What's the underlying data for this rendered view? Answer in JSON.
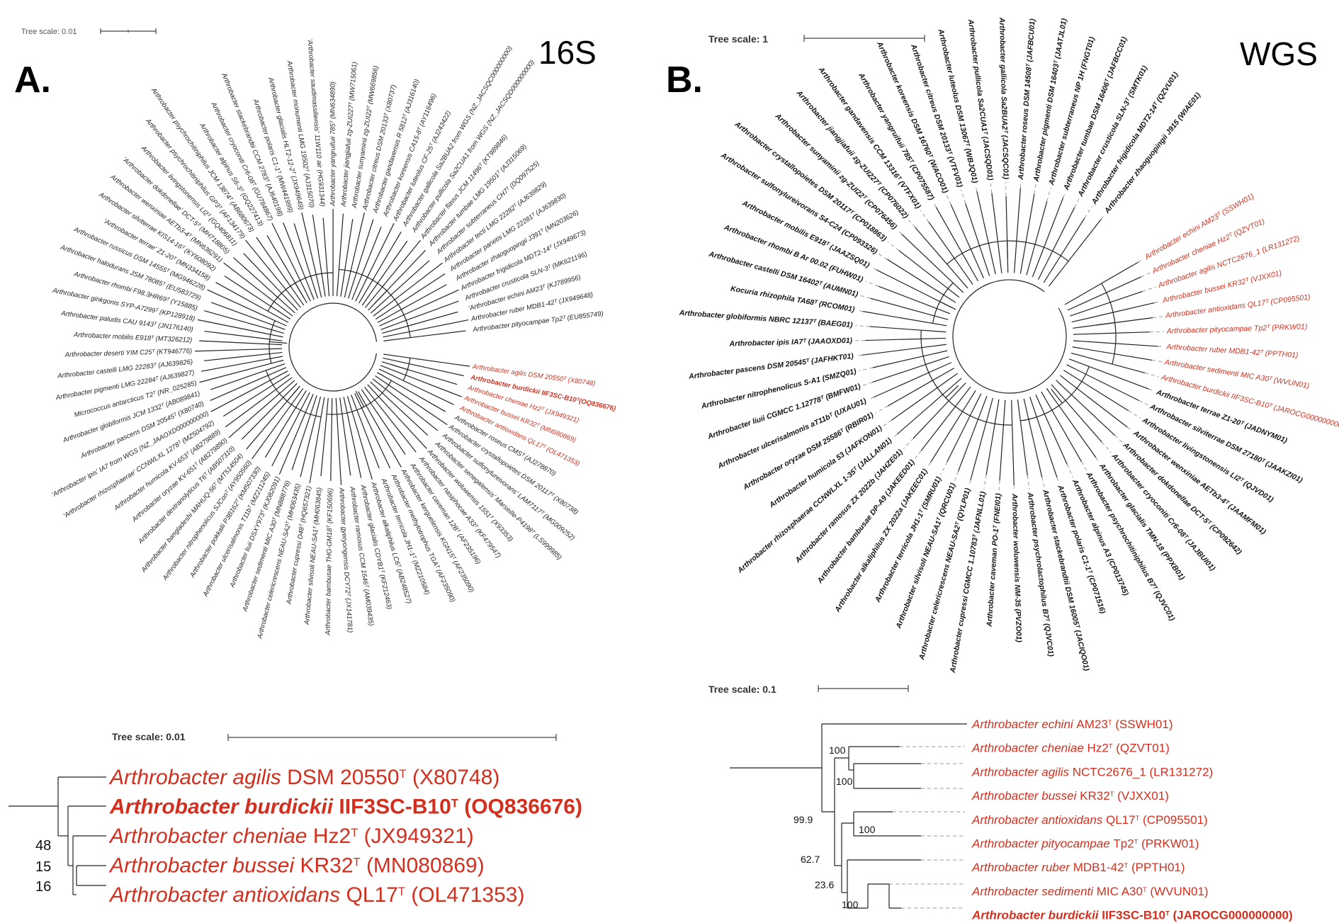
{
  "panel_a": {
    "letter": "A.",
    "method": "16S",
    "tree_scale": "Tree scale: 0.01",
    "leaves": [
      {
        "text": "Arthrobacter agilis DSM 20550ᵀ (X80748)",
        "red": true
      },
      {
        "text": "Arthrobacter burdickii IIF3SC-B10ᵀ(OQ836676)",
        "red": true,
        "bold": true
      },
      {
        "text": "Arthrobacter cheniae Hz2ᵀ (JX949321)",
        "red": true
      },
      {
        "text": "Arthrobacter bussei KR32ᵀ (MN080869)",
        "red": true
      },
      {
        "text": "Arthrobacter antioxidans QL17ᵀ (OL471353)",
        "red": true
      },
      {
        "text": "Arthrobacter roseus CMSᵀ (AJ278870)"
      },
      {
        "text": "Arthrobacter crystallopoietes DSM 20117ᵀ (X80738)"
      },
      {
        "text": "Arthrobacter sulfonylureivorans' LAM7117ᵀ (MG009252)"
      },
      {
        "text": "Arthrobacter senegalensis' Marseille-P4198ᵀ (LS999985)"
      },
      {
        "text": "Arthrobacter woluwensis 1551ᵀ (X93353)"
      },
      {
        "text": "Arthrobacter nasiphocae A33ᵀ (KF479547)"
      },
      {
        "text": "Arthrobacter caveman 12Bᵀ (AF235196)"
      },
      {
        "text": "Arthrobacter kerguelensis KGN15ᵀ (AF235090)"
      },
      {
        "text": "Arthrobacter methylotrophus TGAᵀ (AF235090)"
      },
      {
        "text": "Arthrobacter terricola JH1-1ᵀ (MZ210584)"
      },
      {
        "text": "Arthrobacter alkaliphilus LC6ᵀ (AB248527)"
      },
      {
        "text": "Arthrobacter glacialis CDYB1ᵀ (KF212463)"
      },
      {
        "text": "Arthrobacter ramosus CCM 1646ᵀ (AM039435)"
      },
      {
        "text": "Arthrobacter gyeryongensis DCY72ᵀ (JX141781)"
      },
      {
        "text": "Arthrobacter bambusae THG-GM18ᵀ (KF150696)"
      },
      {
        "text": "Arthrobacter silvisoli NEAU-SA1ᵀ (MH063845)"
      },
      {
        "text": "Arthrobacter cupressi D48ᵀ (HQ657321)"
      },
      {
        "text": "Arthrobacter celericrescens NEAU-SA2ᵀ (MH063435)"
      },
      {
        "text": "Arthrobacter sedimenti MIC A30ᵀ (MN888776)"
      },
      {
        "text": "Arthrobacter liuii DSXY973ᵀ (KJ082091)"
      },
      {
        "text": "Arthrobacter ulcerisalmonis T11bᵀ (MZ211245)"
      },
      {
        "text": "Arthrobacter pokkalii P3B162ᵀ (KM507330)"
      },
      {
        "text": "Arthrobacter nitrophenolicus SJConᵀ (AY950560)"
      },
      {
        "text": "Arthrobacter bangladeshi MAHUQ-56ᵀ (MT514504)"
      },
      {
        "text": "Arthrobacter dextranolyticus T6ᵀ (AB507310)"
      },
      {
        "text": "Arthrobacter oryzae KV-651ᵀ (AB279890)"
      },
      {
        "text": "Arthrobacter humicola KV-653ᵀ (AB279889)"
      },
      {
        "text": "'Arthrobacter rhizosphaerae' CCNWLXL 1278ᵀ (MZ504792)"
      },
      {
        "text": "'Arthrobacter ipis' IA7 from WGS (NZ_JAAOXD000000000)"
      },
      {
        "text": "Arthrobacter pascens DSM 20545ᵀ (X80740)"
      },
      {
        "text": "Arthrobacter globiformis JCM 1332ᵀ (AB089841)"
      },
      {
        "text": "Micrococcus antarcticus T2ᵀ (NR_025285)"
      },
      {
        "text": "Arthrobacter pigmenti LMG 22284ᵀ (AJ639827)"
      },
      {
        "text": "Arthrobacter castelli LMG 22283ᵀ (AJ639826)"
      },
      {
        "text": "Arthrobacter deserti YIM C25ᵀ (KT946776)"
      },
      {
        "text": "Arthrobacter mobilis E918ᵀ (MT326212)"
      },
      {
        "text": "Arthrobacter paludis CAU 9143ᵀ (JN176140)"
      },
      {
        "text": "Arthrobacter ginkgonis SYP-A7299ᵀ (KP128918)"
      },
      {
        "text": "Arthrobacter rhombi F98.3HR69ᵀ (Y15885)"
      },
      {
        "text": "Arthrobacter halodurans JSM 78085ᵀ (EU583729)"
      },
      {
        "text": "Arthrobacter russicus DSM 14555ᵀ (MG946228)"
      },
      {
        "text": "'Arthrobacter terrae' Z1-20ᵀ (MN334158)"
      },
      {
        "text": "Arthrobacter silviterrae KIS14-16ᵀ (KY608092)"
      },
      {
        "text": "Arthrobacter wenxiniae AETb3-4ᵀ (MN636291)"
      },
      {
        "text": "'Arthrobacter dokdonellae' DCT-5ᵀ (MH718805)"
      },
      {
        "text": "Arthrobacter livingstonensis LI2ᵀ (GQ406811)"
      },
      {
        "text": "Arthrobacter psychrochitiniphilus GP3ᵀ (AF134179)"
      },
      {
        "text": "Arthrobacter psychrochitiniphilus JCM 13874ᵀ (AB680673)"
      },
      {
        "text": "Arthrobacter alpinus S6-3ᵀ (GQ227413)"
      },
      {
        "text": "Arthrobacter cryoconiti Cr6-08ᵀ (GU784867)"
      },
      {
        "text": "Arthrobacter stackebrandtii CCM 2783ᵀ (AJ640198)"
      },
      {
        "text": "Arthrobacter polaris C1-1ᵀ (MW441999)"
      },
      {
        "text": "Arthrobacter glacialis HLT2-12-2ᵀ (JX949649)"
      },
      {
        "text": "Arthrobacter monumenti LMG 19502ᵀ (AJ315070)"
      },
      {
        "text": "'Arthrobacter saudimassiliensis' 11W110 air (HG931344)"
      },
      {
        "text": "Arthrobacter yangruifuii 785ᵀ (MN634890)"
      },
      {
        "text": "Arthrobacter jiangjiafuii zg-ZUI227ᵀ (MW715061)"
      },
      {
        "text": "Arthrobacter sunyaminii zg-ZUI22ᵀ (MW669856)"
      },
      {
        "text": "Arthrobacter citreus DSM 20133ᵀ (X80737)"
      },
      {
        "text": "Arthrobacter gandavensis R 5812ᵀ (AJ316140)"
      },
      {
        "text": "Arthrobacter koreensis CA15-8ᵀ (AY116496)"
      },
      {
        "text": "Arthrobacter luteolus CF-25ᵀ (AJ243422)"
      },
      {
        "text": "Arthrobacter gallicola Sa2BUA2 from WGS (NZ_JACSQC000000000)"
      },
      {
        "text": "Arthrobacter pullicola Sa2CUA1 from WGS (NZ_JACSQD000000000)"
      },
      {
        "text": "Arthrobacter flavus JCM 11496ᵀ (KT989846)"
      },
      {
        "text": "Arthrobacter tumbae LMG 19501ᵀ (AJ315069)"
      },
      {
        "text": "Arthrobacter subterraneus CH7ᵀ (DQ097525)"
      },
      {
        "text": "Arthrobacter tecti LMG 22282ᵀ (AJ639829)"
      },
      {
        "text": "Arthrobacter parietis LMG 22281ᵀ (AJ639830)"
      },
      {
        "text": "Arthrobacter zhaoguopingii J391ᵀ (MN203626)"
      },
      {
        "text": "Arthrobacter frigidicola MDT2-14ᵀ (JX949673)"
      },
      {
        "text": "Arthrobacter crusticola SLN-3ᵀ (MK621196)"
      },
      {
        "text": "'Arthrobacter echini AM23ᵀ (KJ789956)"
      },
      {
        "text": "Arthrobacter ruber MDB1-42ᵀ (JX949648)"
      },
      {
        "text": "Arthrobacter pityocampae Tp2ᵀ (EU855749)"
      }
    ]
  },
  "panel_a_zoom": {
    "tree_scale": "Tree scale: 0.01",
    "rows": [
      {
        "genus": "Arthrobacter",
        "species": "agilis",
        "strain": "DSM 20550",
        "sup": "T",
        "acc": "(X80748)",
        "bold": false
      },
      {
        "genus": "Arthrobacter",
        "species": "burdickii",
        "strain": "IIF3SC-B10",
        "sup": "T",
        "acc": "(OQ836676)",
        "bold": true
      },
      {
        "genus": "Arthrobacter",
        "species": "cheniae",
        "strain": "Hz2",
        "sup": "T",
        "acc": "(JX949321)",
        "bold": false
      },
      {
        "genus": "Arthrobacter",
        "species": "bussei",
        "strain": "KR32",
        "sup": "T",
        "acc": "(MN080869)",
        "bold": false
      },
      {
        "genus": "Arthrobacter",
        "species": "antioxidans",
        "strain": " QL17",
        "sup": "T",
        "acc": "(OL471353)",
        "bold": false
      }
    ],
    "bootstraps": [
      "48",
      "15",
      "16"
    ]
  },
  "panel_b": {
    "letter": "B.",
    "method": "WGS",
    "tree_scale": "Tree scale: 1",
    "leaves": [
      {
        "text": "Arthrobacter echini AM23ᵀ (SSWH01)",
        "red": true
      },
      {
        "text": "Arthrobacter cheniae Hz2ᵀ (QZVT01)",
        "red": true
      },
      {
        "text": "Arthrobacter agilis NCTC2676_1 (LR131272)",
        "red": true
      },
      {
        "text": "Arthrobacter bussei KR32ᵀ (VJXX01)",
        "red": true
      },
      {
        "text": "Arthrobacter antioxidans QL17ᵀ (CP095501)",
        "red": true
      },
      {
        "text": "Arthrobacter pityocampae Tp2ᵀ (PRKW01)",
        "red": true
      },
      {
        "text": "Arthrobacter ruber MDB1-42ᵀ (PPTH01)",
        "red": true
      },
      {
        "text": "Arthrobacter sedimenti MIC A30ᵀ (WVUN01)",
        "red": true
      },
      {
        "text": "Arthrobacter burdickii IIF3SC-B10ᵀ (JAROCG000000000)",
        "red": true
      },
      {
        "text": "Arthrobacter terrae Z1-20ᵀ (JADNYM01)"
      },
      {
        "text": "Arthrobacter silviterrae DSM 27180ᵀ (JAAKZI01)"
      },
      {
        "text": "Arthrobacter livingstonensis LI2ᵀ (QJVD01)"
      },
      {
        "text": "Arthrobacter wenxiniae AETb3-4ᵀ (JAAMFM01)"
      },
      {
        "text": "Arthrobacter dokdonellae DCT-5ᵀ (CP092642)"
      },
      {
        "text": "Arthrobacter cryoconiti Cr6-08ᵀ (JAJBUI01)"
      },
      {
        "text": "Arthrobacter glacialis TMN-18 (PPXB01)"
      },
      {
        "text": "Arthrobacter psychrochitiniphilus B7ᵀ (QJVC01)"
      },
      {
        "text": "Arthrobacter alpinus A3 (CP013745)"
      },
      {
        "text": "Arthrobacter polaris C1-1ᵀ (CP071516)"
      },
      {
        "text": "Arthrobacter stackebrandtii DSM 16005ᵀ (JACIQO01)"
      },
      {
        "text": "Arthrobacter psychrolactophilus B7ᵀ (QJVC01)"
      },
      {
        "text": "Arthrobacter woluwensis NM-35 (PVZO01)"
      },
      {
        "text": "Arthrobacter caveman PO-1ᵀ (FNEI01)"
      },
      {
        "text": "Arthrobacter cupressi CGMCC 1.10783ᵀ (JAFNLL01)"
      },
      {
        "text": "Arthrobacter celericrescens NEAU-SA2ᵀ (QYLP01)"
      },
      {
        "text": "Arthrobacter silvisoli NEAU-SA1ᵀ (QRCU01)"
      },
      {
        "text": "Arthrobacter terricola JH1-1ᵀ (SMRU01)"
      },
      {
        "text": "Arthrobacter alkaliphilus ZX 2022a (JAKEEC01)"
      },
      {
        "text": "Arthrobacter bambusae DP-A9 (JAKEED01)"
      },
      {
        "text": "Arthrobacter ramosus ZX 2022b (JAHZE01)"
      },
      {
        "text": "Arthrobacter rhizosphaerae CCNWLXL 1-35ᵀ (JALLAN01)"
      },
      {
        "text": "Arthrobacter humicola 53 (JAFKON01)"
      },
      {
        "text": "Arthrobacter oryzae DSM 25586ᵀ (RBIR01)"
      },
      {
        "text": "Arthrobacter ulcerisalmonis aT11bᵀ (UXAU01)"
      },
      {
        "text": "Arthrobacter liuii CGMCC 1.12778ᵀ (BMFW01)"
      },
      {
        "text": "Arthrobacter nitrophenolicus S-A1 (SMZQ01)"
      },
      {
        "text": "Arthrobacter pascens DSM 20545ᵀ (JAFHKT01)"
      },
      {
        "text": "Arthrobacter ipis IA7ᵀ (JAAOXD01)"
      },
      {
        "text": "Arthrobacter globiformis NBRC 12137ᵀ (BAEG01)"
      },
      {
        "text": "Kocuria rhizophila TA68ᵀ (RCOM01)"
      },
      {
        "text": "Arthrobacter castelli DSM 16402ᵀ (AUMN01)"
      },
      {
        "text": "Arthrobacter rhombi B Ar 00.02 (FUHW01)"
      },
      {
        "text": "Arthrobacter mobilis E918ᵀ (JAAZSQ01)"
      },
      {
        "text": "Arthrobacter sulfonylureivorans S4-C24 (CP093326)"
      },
      {
        "text": "Arthrobacter crystallopoietes DSM 20117ᵀ (CP018863)"
      },
      {
        "text": "Arthrobacter sunyaminii zg-ZUI22ᵀ (CP076456)"
      },
      {
        "text": "Arthrobacter jiangjiafuii zg-ZUI227ᵀ (CP076022)"
      },
      {
        "text": "Arthrobacter gandavensis CCM 13316ᵀ (VTFX01)"
      },
      {
        "text": "Arthrobacter yangruifuii 785ᵀ (CP075587)"
      },
      {
        "text": "Arthrobacter koreensis DSM 16760ᵀ (WACO01)"
      },
      {
        "text": "Arthrobacter citreus DSM 20133ᵀ (VTFV01)"
      },
      {
        "text": "Arthrobacter luteolus DSM 13067ᵀ (WBJQ01)"
      },
      {
        "text": "Arthrobacter pullicola Sa2CUA1ᵀ (JACSQD01)"
      },
      {
        "text": "Arthrobacter gallicola Sa2BUA2ᵀ (JACSQC01)"
      },
      {
        "text": "Arthrobacter roseus DSM 14508ᵀ (JAFBCU01)"
      },
      {
        "text": "Arthrobacter pigmenti DSM 16403ᵀ (JAATJL01)"
      },
      {
        "text": "Arthrobacter subterraneus NP 1H (FNGT01)"
      },
      {
        "text": "Arthrobacter tumbae DSM 16406ᵀ (JAFBCC01)"
      },
      {
        "text": "Arthrobacter crusticola SLN-3ᵀ (SMTK01)"
      },
      {
        "text": "Arthrobacter frigidicola MDT2-14ᵀ (QZVU01)"
      },
      {
        "text": "Arthrobacter zhaoguopingii J915 (WIAE01)"
      }
    ]
  },
  "panel_b_zoom": {
    "tree_scale": "Tree scale: 0.1",
    "rows": [
      {
        "genus": "Arthrobacter",
        "species": "echini",
        "strain": "AM23",
        "sup": "T",
        "acc": "(SSWH01)",
        "bold": false
      },
      {
        "genus": "Arthrobacter",
        "species": "cheniae",
        "strain": "Hz2",
        "sup": "T",
        "acc": "(QZVT01)",
        "bold": false
      },
      {
        "genus": "Arthrobacter",
        "species": "agilis",
        "strain": "NCTC2676_1",
        "sup": "",
        "acc": "(LR131272)",
        "bold": false
      },
      {
        "genus": "Arthrobacter",
        "species": "bussei",
        "strain": "KR32",
        "sup": "T",
        "acc": "(VJXX01)",
        "bold": false
      },
      {
        "genus": "Arthrobacter",
        "species": "antioxidans",
        "strain": "QL17",
        "sup": "T",
        "acc": "(CP095501)",
        "bold": false
      },
      {
        "genus": "Arthrobacter",
        "species": "pityocampae",
        "strain": "Tp2",
        "sup": "T",
        "acc": "(PRKW01)",
        "bold": false
      },
      {
        "genus": "Arthrobacter",
        "species": "ruber",
        "strain": "MDB1-42",
        "sup": "T",
        "acc": "(PPTH01)",
        "bold": false
      },
      {
        "genus": "Arthrobacter",
        "species": "sedimenti",
        "strain": "MIC A30",
        "sup": "T",
        "acc": "(WVUN01)",
        "bold": false
      },
      {
        "genus": "Arthrobacter",
        "species": "burdickii",
        "strain": "IIF3SC-B10",
        "sup": "T",
        "acc": "(JAROCG000000000)",
        "bold": true
      }
    ],
    "bootstraps": [
      "100",
      "100",
      "99.9",
      "100",
      "62.7",
      "23.6",
      "100"
    ]
  }
}
